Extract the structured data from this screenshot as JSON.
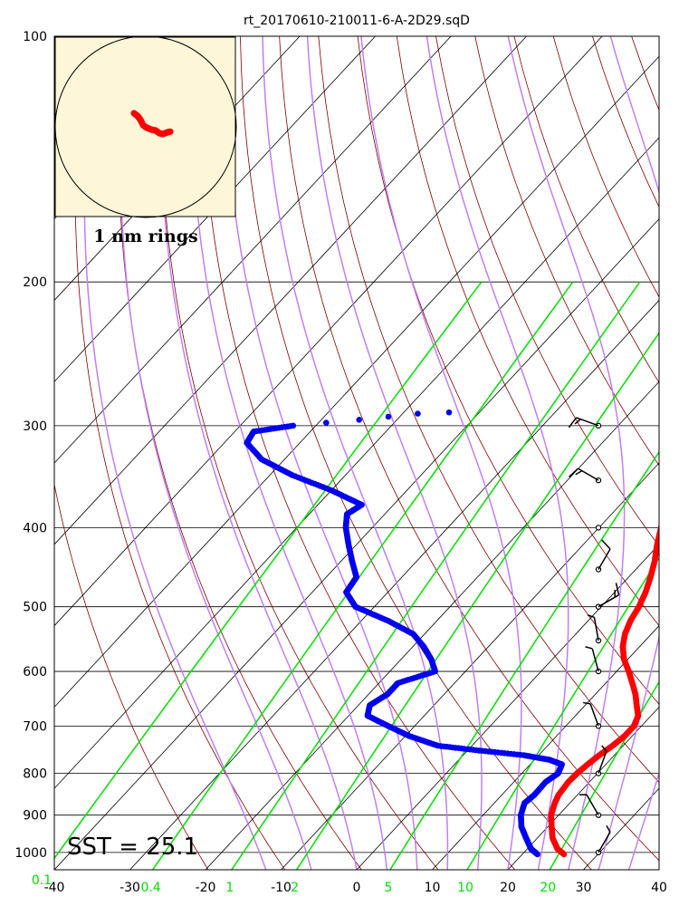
{
  "chart_data": {
    "type": "skew-t log-p",
    "title": "rt_20170610-210011-6-A-2D29.sqD",
    "x_axis": {
      "range": [
        -40,
        40
      ],
      "ticks": [
        "-40",
        "-30",
        "-20",
        "-10",
        "0",
        "10",
        "20",
        "30",
        "40"
      ],
      "units": "°C"
    },
    "y_axis": {
      "scale": "log",
      "range": [
        100,
        1050
      ],
      "ticks": [
        "100",
        "200",
        "300",
        "400",
        "500",
        "600",
        "700",
        "800",
        "900",
        "1000"
      ],
      "units": "hPa"
    },
    "mixing_ratio_labels": [
      "0.1",
      "0.4",
      "1",
      "2",
      "5",
      "10",
      "20"
    ],
    "sst_label": "SST = 25.1",
    "inset": {
      "label": "1 nm rings",
      "background": "#fdf6d8",
      "track_color": "#ff0000"
    },
    "colors": {
      "temperature": "#ff0000",
      "dewpoint": "#0000ee",
      "isotherms": "#000000",
      "dry_adiabats": "#800000",
      "moist_adiabats": "#c080f0",
      "mixing_ratio": "#00e000",
      "wind_barbs": "#000000"
    },
    "temperature_profile": {
      "name": "Temperature",
      "p": [
        1005,
        990,
        960,
        930,
        900,
        870,
        850,
        820,
        800,
        780,
        760,
        740,
        720,
        700,
        680,
        660,
        640,
        620,
        600,
        580,
        560,
        540,
        520,
        500,
        480,
        460,
        440,
        420,
        400,
        385,
        375,
        360,
        340,
        320,
        305,
        295,
        288
      ],
      "t": [
        25.5,
        24,
        22,
        20.5,
        19,
        18,
        17.5,
        17.2,
        17.3,
        17.6,
        18,
        18.6,
        19,
        19,
        18.3,
        16.8,
        15.3,
        13.5,
        11.6,
        9.5,
        7.8,
        6.5,
        5.6,
        5,
        4.1,
        2.9,
        1.5,
        -0.2,
        -1.8,
        -3,
        -2.8,
        -4.1,
        -6.5,
        -9.3,
        -11.6,
        -13.1,
        -14.3
      ]
    },
    "dewpoint_profile": {
      "name": "Dewpoint",
      "p": [
        1005,
        990,
        960,
        930,
        900,
        870,
        850,
        820,
        800,
        780,
        770,
        760,
        750,
        740,
        720,
        700,
        680,
        660,
        640,
        620,
        600,
        580,
        560,
        540,
        520,
        500,
        480,
        460,
        440,
        420,
        400,
        385,
        375,
        360,
        345,
        330,
        315,
        305,
        300,
        295,
        290,
        288
      ],
      "td": [
        22,
        20.5,
        18.5,
        16.5,
        15,
        14,
        14.3,
        14.2,
        14.8,
        14.2,
        12,
        8,
        1.5,
        -4.5,
        -9.5,
        -13.5,
        -17.5,
        -18.5,
        -17.5,
        -17.5,
        -14,
        -16,
        -18.5,
        -21.5,
        -26.5,
        -32.5,
        -35.5,
        -36,
        -38.5,
        -41,
        -43.5,
        -45,
        -44.2,
        -50,
        -57,
        -63,
        -67,
        -67.5,
        -63,
        -55,
        -48,
        -40
      ]
    },
    "wind_barbs": [
      {
        "p": 1000,
        "dir": 30,
        "speed_kt": 5
      },
      {
        "p": 900,
        "dir": 330,
        "speed_kt": 5
      },
      {
        "p": 800,
        "dir": 20,
        "speed_kt": 5
      },
      {
        "p": 700,
        "dir": 340,
        "speed_kt": 5
      },
      {
        "p": 600,
        "dir": 345,
        "speed_kt": 5
      },
      {
        "p": 550,
        "dir": 350,
        "speed_kt": 5
      },
      {
        "p": 500,
        "dir": 60,
        "speed_kt": 15
      },
      {
        "p": 450,
        "dir": 30,
        "speed_kt": 10
      },
      {
        "p": 400,
        "dir": 0,
        "speed_kt": 0
      },
      {
        "p": 350,
        "dir": 300,
        "speed_kt": 15
      },
      {
        "p": 300,
        "dir": 290,
        "speed_kt": 15
      }
    ]
  }
}
